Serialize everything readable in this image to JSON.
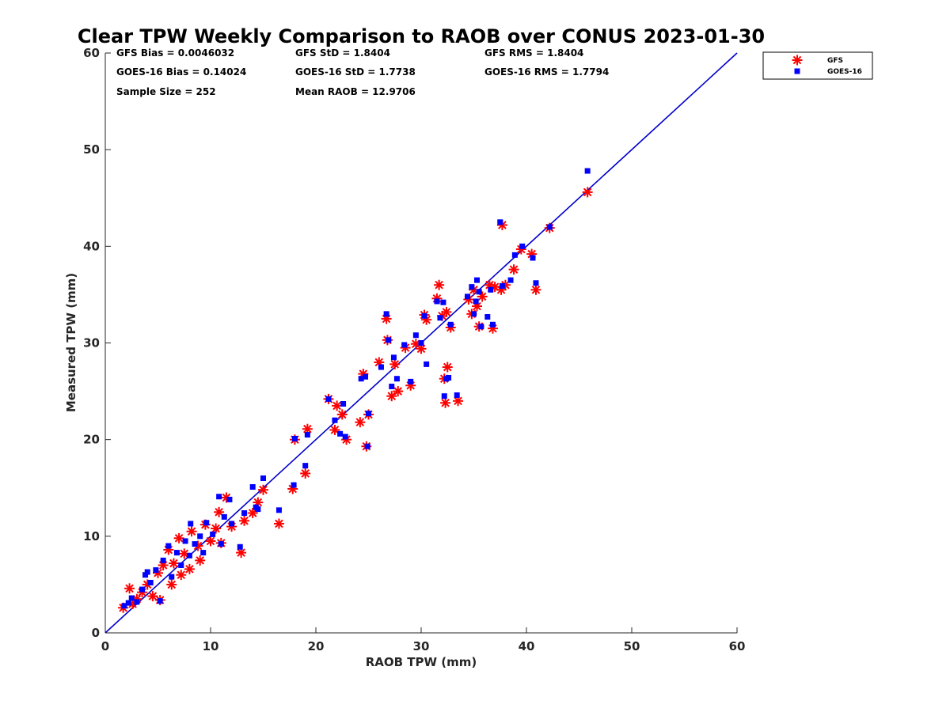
{
  "chart_data": {
    "type": "scatter",
    "title": "Clear TPW Weekly Comparison to RAOB over CONUS 2023-01-30",
    "xlabel": "RAOB TPW (mm)",
    "ylabel": "Measured TPW (mm)",
    "xlim": [
      0,
      60
    ],
    "ylim": [
      0,
      60
    ],
    "xticks": [
      "0",
      "10",
      "20",
      "30",
      "40",
      "50",
      "60"
    ],
    "yticks": [
      "0",
      "10",
      "20",
      "30",
      "40",
      "50",
      "60"
    ],
    "grid": false,
    "legend_position": "top-right outside",
    "stats": [
      "GFS Bias = 0.0046032",
      "GFS StD = 1.8404",
      "GFS RMS = 1.8404",
      "GOES-16 Bias = 0.14024",
      "GOES-16 StD = 1.7738",
      "GOES-16 RMS = 1.7794",
      "Sample Size = 252",
      "Mean RAOB = 12.9706"
    ],
    "reference_line": {
      "x": [
        0,
        60
      ],
      "y": [
        0,
        60
      ],
      "color": "#0000cc"
    },
    "series": [
      {
        "name": "GFS",
        "marker": "asterisk",
        "color": "#ff0000",
        "points": [
          [
            1.7,
            2.6
          ],
          [
            2.3,
            4.6
          ],
          [
            2.6,
            3.0
          ],
          [
            3.0,
            3.5
          ],
          [
            3.5,
            4.2
          ],
          [
            4.0,
            5.0
          ],
          [
            4.5,
            3.8
          ],
          [
            5.0,
            6.2
          ],
          [
            5.2,
            3.4
          ],
          [
            5.5,
            7.0
          ],
          [
            6.0,
            8.6
          ],
          [
            6.3,
            5.0
          ],
          [
            6.5,
            7.2
          ],
          [
            7.0,
            9.8
          ],
          [
            7.2,
            6.0
          ],
          [
            7.5,
            8.2
          ],
          [
            8.0,
            6.6
          ],
          [
            8.2,
            10.5
          ],
          [
            8.8,
            9.0
          ],
          [
            9.0,
            7.5
          ],
          [
            9.5,
            11.2
          ],
          [
            10.0,
            9.5
          ],
          [
            10.5,
            10.8
          ],
          [
            10.8,
            12.5
          ],
          [
            11.0,
            9.3
          ],
          [
            11.5,
            14.0
          ],
          [
            12.0,
            11.0
          ],
          [
            12.9,
            8.3
          ],
          [
            13.2,
            11.6
          ],
          [
            14.0,
            12.4
          ],
          [
            14.5,
            13.5
          ],
          [
            15.0,
            14.8
          ],
          [
            16.5,
            11.3
          ],
          [
            17.8,
            14.9
          ],
          [
            18.0,
            20.0
          ],
          [
            19.0,
            16.5
          ],
          [
            19.2,
            21.1
          ],
          [
            21.2,
            24.2
          ],
          [
            21.8,
            21.0
          ],
          [
            22.0,
            23.5
          ],
          [
            22.5,
            22.6
          ],
          [
            22.9,
            20.0
          ],
          [
            24.2,
            21.8
          ],
          [
            24.5,
            26.8
          ],
          [
            24.8,
            19.3
          ],
          [
            25.0,
            22.6
          ],
          [
            26.0,
            28.0
          ],
          [
            26.7,
            32.5
          ],
          [
            26.8,
            30.3
          ],
          [
            27.2,
            24.5
          ],
          [
            27.5,
            27.8
          ],
          [
            27.8,
            25.0
          ],
          [
            28.5,
            29.5
          ],
          [
            29.0,
            25.6
          ],
          [
            29.5,
            29.9
          ],
          [
            30.0,
            29.4
          ],
          [
            30.3,
            32.9
          ],
          [
            30.5,
            32.4
          ],
          [
            31.5,
            34.6
          ],
          [
            31.7,
            36.0
          ],
          [
            32.0,
            32.8
          ],
          [
            32.2,
            26.3
          ],
          [
            32.3,
            23.8
          ],
          [
            32.4,
            33.2
          ],
          [
            32.5,
            27.5
          ],
          [
            32.8,
            31.6
          ],
          [
            33.5,
            24.0
          ],
          [
            34.5,
            34.5
          ],
          [
            34.8,
            33.0
          ],
          [
            35.0,
            35.5
          ],
          [
            35.3,
            33.8
          ],
          [
            35.5,
            31.7
          ],
          [
            35.8,
            34.8
          ],
          [
            36.5,
            36.0
          ],
          [
            36.8,
            31.5
          ],
          [
            37.0,
            35.8
          ],
          [
            37.6,
            35.5
          ],
          [
            37.7,
            42.2
          ],
          [
            38.0,
            36.0
          ],
          [
            38.8,
            37.6
          ],
          [
            39.5,
            39.7
          ],
          [
            40.5,
            39.2
          ],
          [
            40.9,
            35.5
          ],
          [
            42.2,
            41.9
          ],
          [
            45.8,
            45.6
          ]
        ]
      },
      {
        "name": "GOES-16",
        "marker": "square",
        "color": "#0000ff",
        "points": [
          [
            1.8,
            2.8
          ],
          [
            2.2,
            3.1
          ],
          [
            2.5,
            3.6
          ],
          [
            3.0,
            3.2
          ],
          [
            3.5,
            4.5
          ],
          [
            3.8,
            6.0
          ],
          [
            4.0,
            6.3
          ],
          [
            4.3,
            5.2
          ],
          [
            4.8,
            6.5
          ],
          [
            5.2,
            3.3
          ],
          [
            5.5,
            7.5
          ],
          [
            6.0,
            9.0
          ],
          [
            6.3,
            5.8
          ],
          [
            6.8,
            8.3
          ],
          [
            7.2,
            7.0
          ],
          [
            7.6,
            9.5
          ],
          [
            8.0,
            8.0
          ],
          [
            8.1,
            11.3
          ],
          [
            8.5,
            9.2
          ],
          [
            9.0,
            10.0
          ],
          [
            9.3,
            8.3
          ],
          [
            9.6,
            11.4
          ],
          [
            10.2,
            10.2
          ],
          [
            10.8,
            14.1
          ],
          [
            11.0,
            9.2
          ],
          [
            11.3,
            12.0
          ],
          [
            11.8,
            13.8
          ],
          [
            12.0,
            11.3
          ],
          [
            12.8,
            8.9
          ],
          [
            13.2,
            12.4
          ],
          [
            14.0,
            15.1
          ],
          [
            14.3,
            13.0
          ],
          [
            14.5,
            12.8
          ],
          [
            15.0,
            16.0
          ],
          [
            16.5,
            12.7
          ],
          [
            17.9,
            15.3
          ],
          [
            18.0,
            20.1
          ],
          [
            19.0,
            17.3
          ],
          [
            19.2,
            20.5
          ],
          [
            21.2,
            24.2
          ],
          [
            21.8,
            22.0
          ],
          [
            22.3,
            20.6
          ],
          [
            22.6,
            23.7
          ],
          [
            22.8,
            20.3
          ],
          [
            24.3,
            26.3
          ],
          [
            24.7,
            26.5
          ],
          [
            24.9,
            19.3
          ],
          [
            25.0,
            22.7
          ],
          [
            26.2,
            27.5
          ],
          [
            26.7,
            33.0
          ],
          [
            26.9,
            30.3
          ],
          [
            27.2,
            25.5
          ],
          [
            27.4,
            28.5
          ],
          [
            27.7,
            26.3
          ],
          [
            28.4,
            29.8
          ],
          [
            29.0,
            26.0
          ],
          [
            29.5,
            30.8
          ],
          [
            30.0,
            30.0
          ],
          [
            30.3,
            32.8
          ],
          [
            30.5,
            27.8
          ],
          [
            31.5,
            34.3
          ],
          [
            31.8,
            32.6
          ],
          [
            32.1,
            34.2
          ],
          [
            32.2,
            24.5
          ],
          [
            32.4,
            26.3
          ],
          [
            32.6,
            26.4
          ],
          [
            32.8,
            31.9
          ],
          [
            33.4,
            24.6
          ],
          [
            34.4,
            34.8
          ],
          [
            34.8,
            35.8
          ],
          [
            35.0,
            33.0
          ],
          [
            35.2,
            34.3
          ],
          [
            35.3,
            36.5
          ],
          [
            35.5,
            35.3
          ],
          [
            35.7,
            31.7
          ],
          [
            36.3,
            32.7
          ],
          [
            36.6,
            35.5
          ],
          [
            36.8,
            31.9
          ],
          [
            37.5,
            42.5
          ],
          [
            37.7,
            35.9
          ],
          [
            38.5,
            36.5
          ],
          [
            38.9,
            39.1
          ],
          [
            39.6,
            40.0
          ],
          [
            40.6,
            38.8
          ],
          [
            40.9,
            36.2
          ],
          [
            42.2,
            42.0
          ],
          [
            45.8,
            47.8
          ]
        ]
      }
    ]
  }
}
